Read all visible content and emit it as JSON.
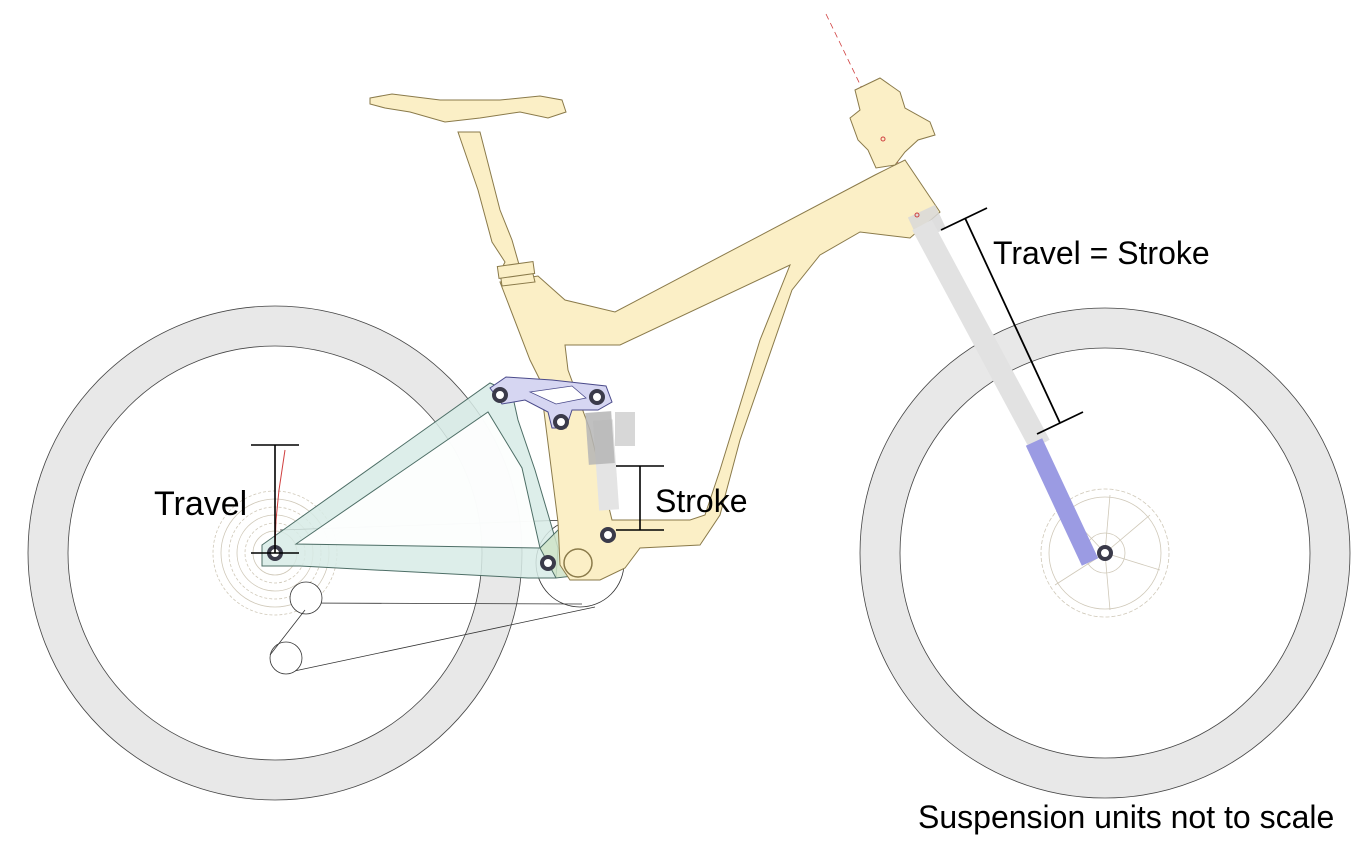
{
  "labels": {
    "rear_travel": "Travel",
    "shock_stroke": "Stroke",
    "fork_travel": "Travel = Stroke",
    "note": "Suspension units not to scale"
  },
  "colors": {
    "frame_fill": "#fbefc6",
    "frame_stroke": "#8a7a4a",
    "rear_triangle_fill": "#d7ebe6",
    "rocker_fill": "#d6d6f2",
    "tire_fill": "#e8e8e8",
    "fork_lower": "#9b9be3",
    "shock_body": "#bdbdbd",
    "marker_red": "#d04040"
  }
}
